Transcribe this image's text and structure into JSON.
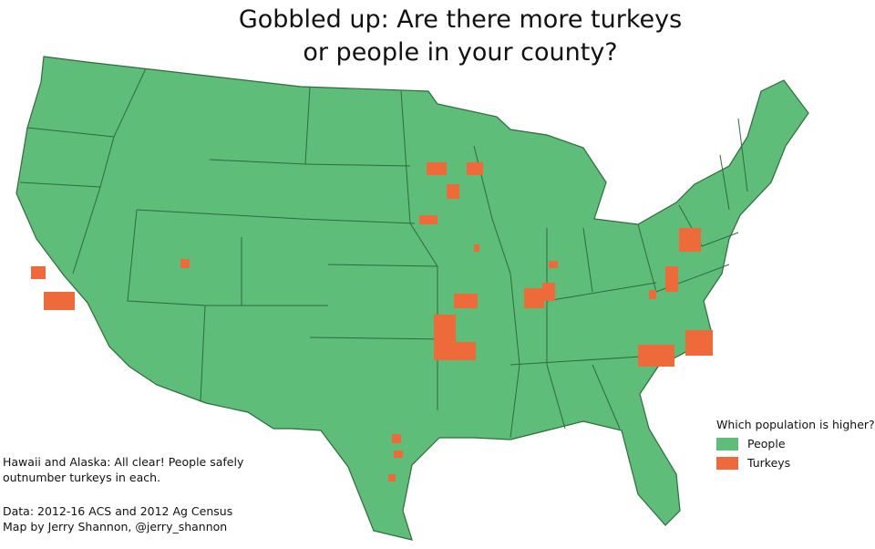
{
  "title": {
    "line1": "Gobbled up:  Are there more turkeys",
    "line2": "or people in your county?"
  },
  "note": "Hawaii and Alaska: All clear! People safely outnumber turkeys in each.",
  "credit": {
    "line1": "Data: 2012-16 ACS and 2012 Ag Census",
    "line2": "Map by Jerry Shannon, @jerry_shannon"
  },
  "legend": {
    "title": "Which population is higher?",
    "items": [
      {
        "label": "People",
        "color": "#5dbd79"
      },
      {
        "label": "Turkeys",
        "color": "#ef6a3a"
      }
    ]
  },
  "colors": {
    "border": "#2f6b3d",
    "background": "#ffffff"
  }
}
